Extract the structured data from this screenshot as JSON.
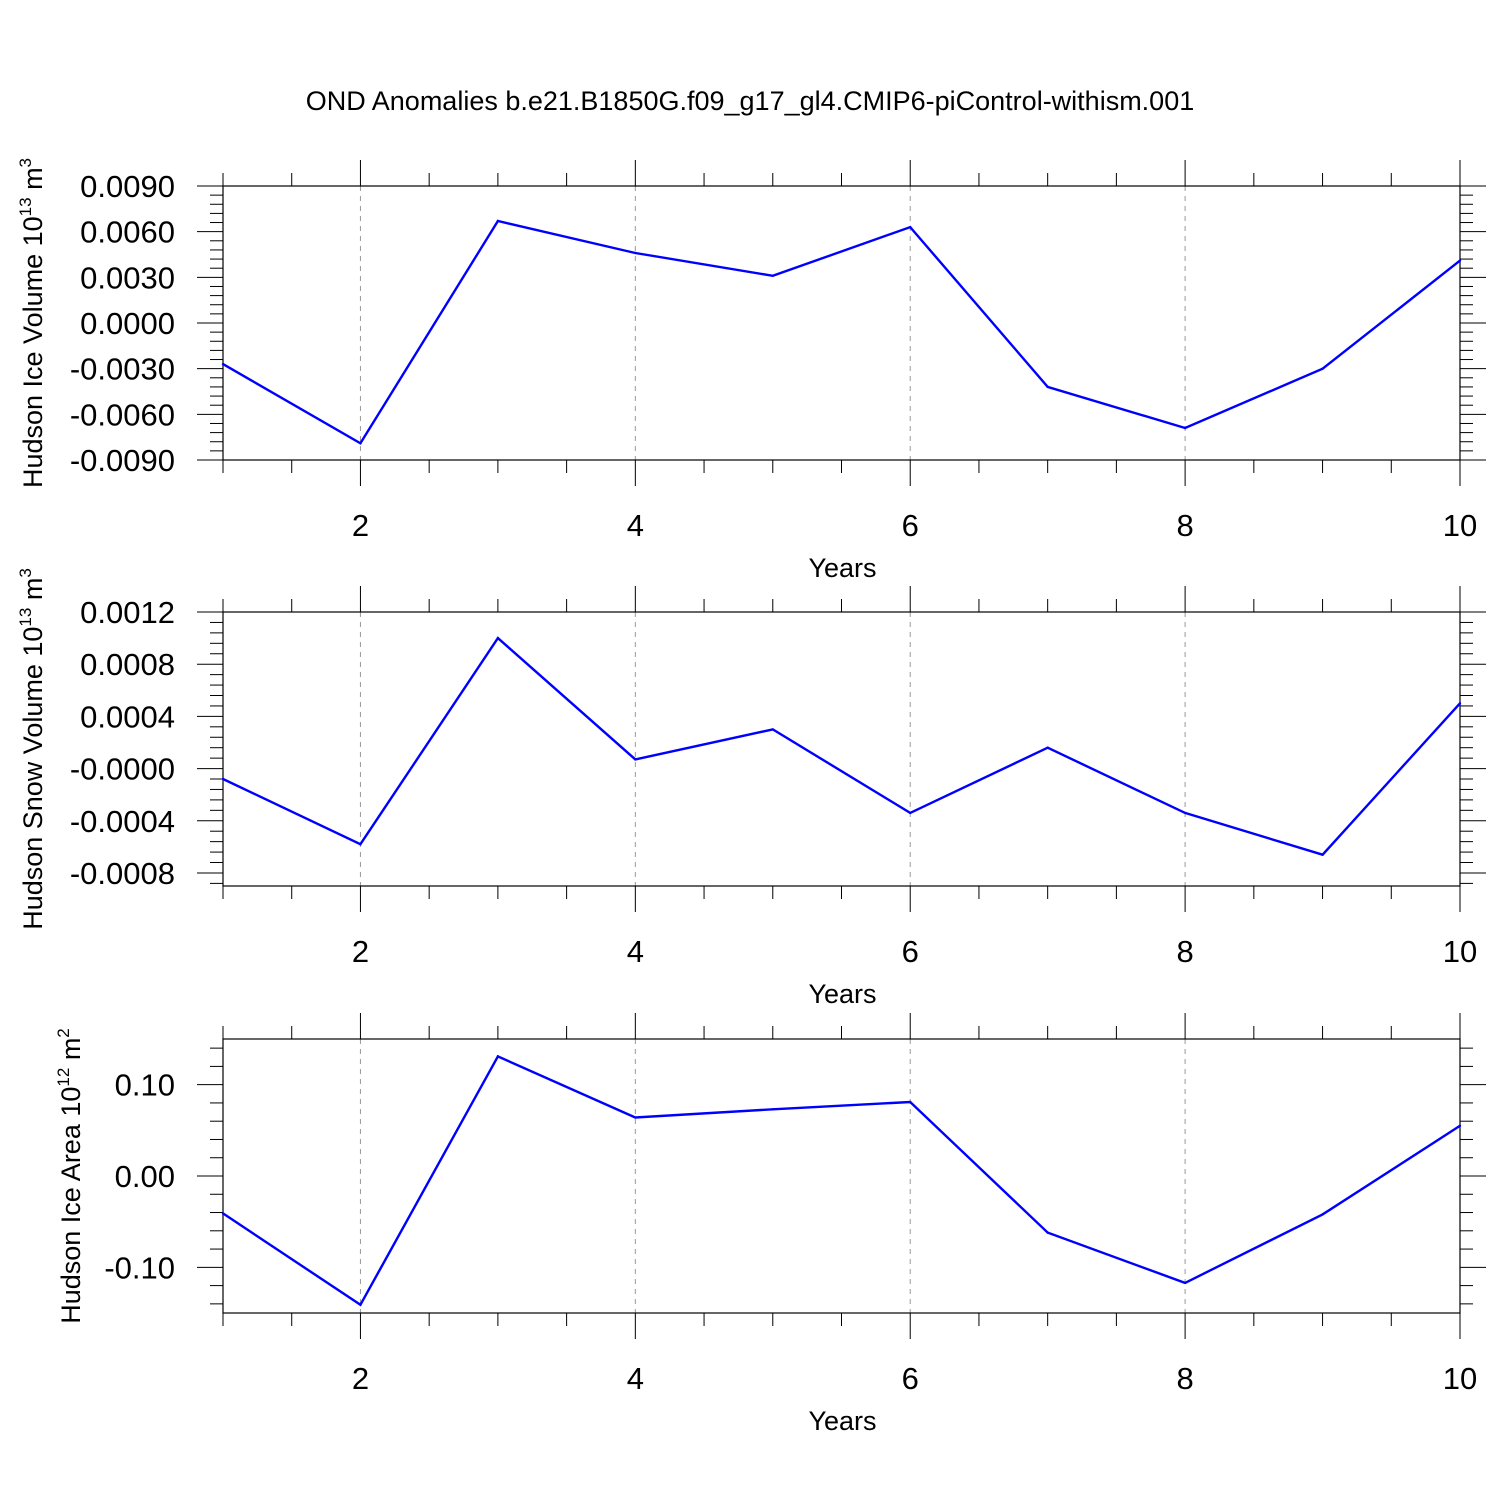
{
  "title": "OND Anomalies b.e21.B1850G.f09_g17_gl4.CMIP6-piControl-withism.001",
  "colors": {
    "series": "#0000ff",
    "axis": "#000000",
    "grid": "#999999"
  },
  "chart_data": [
    {
      "type": "line",
      "xlabel": "Years",
      "ylabel": {
        "prefix": "Hudson Ice Volume 10",
        "exponent": "13",
        "unit": " m",
        "unit_exponent": "3"
      },
      "xlim": [
        1,
        10
      ],
      "ylim": [
        -0.009,
        0.009
      ],
      "grid": "vertical dashed at major x ticks",
      "x_ticks": [
        2,
        4,
        6,
        8,
        10
      ],
      "x_tick_labels": [
        "2",
        "4",
        "6",
        "8",
        "10"
      ],
      "y_ticks": [
        0.009,
        0.006,
        0.003,
        0.0,
        -0.003,
        -0.006,
        -0.009
      ],
      "y_tick_labels": [
        "0.0090",
        "0.0060",
        "0.0030",
        "0.0000",
        "-0.0030",
        "-0.0060",
        "-0.0090"
      ],
      "x": [
        1,
        2,
        3,
        4,
        5,
        6,
        7,
        8,
        9,
        10
      ],
      "values": [
        -0.0027,
        -0.0079,
        0.0067,
        0.0046,
        0.0031,
        0.0063,
        -0.0042,
        -0.0069,
        -0.003,
        0.0041
      ]
    },
    {
      "type": "line",
      "xlabel": "Years",
      "ylabel": {
        "prefix": "Hudson Snow Volume 10",
        "exponent": "13",
        "unit": " m",
        "unit_exponent": "3"
      },
      "xlim": [
        1,
        10
      ],
      "ylim": [
        -0.0009,
        0.0012
      ],
      "grid": "vertical dashed at major x ticks",
      "x_ticks": [
        2,
        4,
        6,
        8,
        10
      ],
      "x_tick_labels": [
        "2",
        "4",
        "6",
        "8",
        "10"
      ],
      "y_ticks": [
        0.0012,
        0.0008,
        0.0004,
        0.0,
        -0.0004,
        -0.0008
      ],
      "y_tick_labels": [
        "0.0012",
        "0.0008",
        "0.0004",
        "-0.0000",
        "-0.0004",
        "-0.0008"
      ],
      "x": [
        1,
        2,
        3,
        4,
        5,
        6,
        7,
        8,
        9,
        10
      ],
      "values": [
        -8e-05,
        -0.00058,
        0.001,
        7e-05,
        0.0003,
        -0.00034,
        0.00016,
        -0.00034,
        -0.00066,
        0.0005
      ]
    },
    {
      "type": "line",
      "xlabel": "Years",
      "ylabel": {
        "prefix": "Hudson Ice Area 10",
        "exponent": "12",
        "unit": " m",
        "unit_exponent": "2"
      },
      "xlim": [
        1,
        10
      ],
      "ylim": [
        -0.15,
        0.15
      ],
      "grid": "vertical dashed at major x ticks",
      "x_ticks": [
        2,
        4,
        6,
        8,
        10
      ],
      "x_tick_labels": [
        "2",
        "4",
        "6",
        "8",
        "10"
      ],
      "y_ticks": [
        0.1,
        0.0,
        -0.1
      ],
      "y_tick_labels": [
        "0.10",
        "0.00",
        "-0.10"
      ],
      "x": [
        1,
        2,
        3,
        4,
        5,
        6,
        7,
        8,
        9,
        10
      ],
      "values": [
        -0.041,
        -0.141,
        0.131,
        0.064,
        0.073,
        0.081,
        -0.062,
        -0.117,
        -0.042,
        0.055
      ]
    }
  ]
}
